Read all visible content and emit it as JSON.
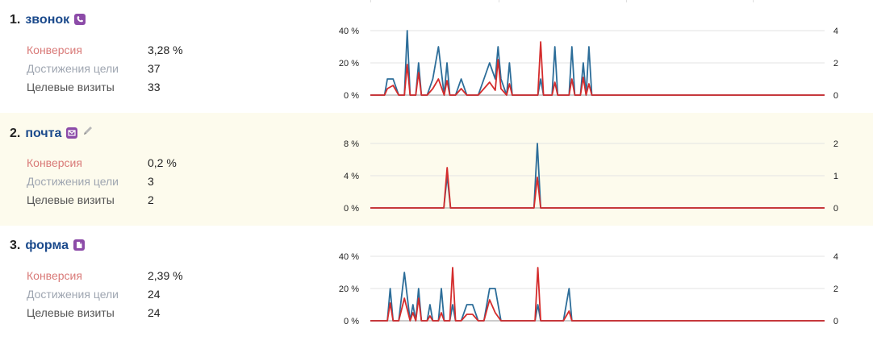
{
  "goals": [
    {
      "number": "1.",
      "name": "звонок",
      "icon": "phone-icon",
      "editable": false,
      "metrics": {
        "conversion_label": "Конверсия",
        "conversion": "3,28 %",
        "reaches_label": "Достижения цели",
        "reaches": "37",
        "visits_label": "Целевые визиты",
        "visits": "33"
      },
      "chart_data": {
        "type": "line",
        "left_axis_ticks": [
          "40 %",
          "20 %",
          "0 %"
        ],
        "right_axis_ticks": [
          "4",
          "2",
          "0"
        ],
        "left_ylim": [
          0,
          40
        ],
        "right_ylim": [
          0,
          4
        ],
        "series": [
          {
            "color": "#2c6d99",
            "points": [
              [
                0,
                0
              ],
              [
                2.5,
                0
              ],
              [
                3,
                1
              ],
              [
                4,
                1
              ],
              [
                5,
                0
              ],
              [
                6,
                0
              ],
              [
                6.5,
                4
              ],
              [
                7,
                0
              ],
              [
                8,
                0
              ],
              [
                8.5,
                2
              ],
              [
                9,
                0
              ],
              [
                10,
                0
              ],
              [
                11,
                1
              ],
              [
                12,
                3
              ],
              [
                13,
                0
              ],
              [
                13.5,
                2
              ],
              [
                14,
                0
              ],
              [
                15,
                0
              ],
              [
                16,
                1
              ],
              [
                17,
                0
              ],
              [
                18,
                0
              ],
              [
                19,
                0
              ],
              [
                20,
                1
              ],
              [
                21,
                2
              ],
              [
                22,
                1
              ],
              [
                22.5,
                3
              ],
              [
                23,
                1
              ],
              [
                24,
                0
              ],
              [
                24.5,
                2
              ],
              [
                25,
                0
              ],
              [
                26,
                0
              ],
              [
                27,
                0
              ],
              [
                28,
                0
              ],
              [
                29,
                0
              ],
              [
                29.5,
                0
              ],
              [
                30,
                1
              ],
              [
                30.5,
                0
              ],
              [
                31,
                0
              ],
              [
                32,
                0
              ],
              [
                32.5,
                3
              ],
              [
                33,
                0
              ],
              [
                34,
                0
              ],
              [
                35,
                0
              ],
              [
                35.5,
                3
              ],
              [
                36,
                0
              ],
              [
                37,
                0
              ],
              [
                37.5,
                2
              ],
              [
                38,
                0
              ],
              [
                38.5,
                3
              ],
              [
                39,
                0
              ],
              [
                80,
                0
              ]
            ]
          },
          {
            "color": "#d42c2c",
            "points": [
              [
                0,
                0
              ],
              [
                2.5,
                0
              ],
              [
                3,
                4
              ],
              [
                4,
                6
              ],
              [
                5,
                0
              ],
              [
                6,
                0
              ],
              [
                6.5,
                19
              ],
              [
                7,
                0
              ],
              [
                8,
                0
              ],
              [
                8.5,
                14
              ],
              [
                9,
                0
              ],
              [
                10,
                0
              ],
              [
                11,
                4
              ],
              [
                12,
                10
              ],
              [
                13,
                0
              ],
              [
                13.5,
                9
              ],
              [
                14,
                0
              ],
              [
                15,
                0
              ],
              [
                16,
                4
              ],
              [
                17,
                0
              ],
              [
                18,
                0
              ],
              [
                19,
                0
              ],
              [
                20,
                4
              ],
              [
                21,
                8
              ],
              [
                22,
                3
              ],
              [
                22.5,
                22
              ],
              [
                23,
                4
              ],
              [
                24,
                0
              ],
              [
                24.5,
                7
              ],
              [
                25,
                0
              ],
              [
                26,
                0
              ],
              [
                27,
                0
              ],
              [
                28,
                0
              ],
              [
                29,
                0
              ],
              [
                29.5,
                0
              ],
              [
                30,
                33
              ],
              [
                30.5,
                0
              ],
              [
                31,
                0
              ],
              [
                32,
                0
              ],
              [
                32.5,
                8
              ],
              [
                33,
                0
              ],
              [
                34,
                0
              ],
              [
                35,
                0
              ],
              [
                35.5,
                10
              ],
              [
                36,
                0
              ],
              [
                37,
                0
              ],
              [
                37.5,
                11
              ],
              [
                38,
                0
              ],
              [
                38.5,
                7
              ],
              [
                39,
                0
              ],
              [
                80,
                0
              ]
            ]
          }
        ]
      }
    },
    {
      "number": "2.",
      "name": "почта",
      "icon": "mail-icon",
      "editable": true,
      "metrics": {
        "conversion_label": "Конверсия",
        "conversion": "0,2 %",
        "reaches_label": "Достижения цели",
        "reaches": "3",
        "visits_label": "Целевые визиты",
        "visits": "2"
      },
      "chart_data": {
        "type": "line",
        "left_axis_ticks": [
          "8 %",
          "4 %",
          "0 %"
        ],
        "right_axis_ticks": [
          "2",
          "1",
          "0"
        ],
        "left_ylim": [
          0,
          8
        ],
        "right_ylim": [
          0,
          2
        ],
        "series": [
          {
            "color": "#2c6d99",
            "points": [
              [
                0,
                0
              ],
              [
                11,
                0
              ],
              [
                11.5,
                1
              ],
              [
                12,
                0
              ],
              [
                24.5,
                0
              ],
              [
                25,
                2
              ],
              [
                25.5,
                0
              ],
              [
                45,
                0
              ]
            ]
          },
          {
            "color": "#d42c2c",
            "points": [
              [
                0,
                0
              ],
              [
                11,
                0
              ],
              [
                11.5,
                5
              ],
              [
                12,
                0
              ],
              [
                24.5,
                0
              ],
              [
                25,
                3.8
              ],
              [
                25.5,
                0
              ],
              [
                45,
                0
              ]
            ]
          }
        ]
      }
    },
    {
      "number": "3.",
      "name": "форма",
      "icon": "document-icon",
      "editable": false,
      "metrics": {
        "conversion_label": "Конверсия",
        "conversion": "2,39 %",
        "reaches_label": "Достижения цели",
        "reaches": "24",
        "visits_label": "Целевые визиты",
        "visits": "24"
      },
      "chart_data": {
        "type": "line",
        "left_axis_ticks": [
          "40 %",
          "20 %",
          "0 %"
        ],
        "right_axis_ticks": [
          "4",
          "2",
          "0"
        ],
        "left_ylim": [
          0,
          40
        ],
        "right_ylim": [
          0,
          4
        ],
        "series": [
          {
            "color": "#2c6d99",
            "points": [
              [
                0,
                0
              ],
              [
                3,
                0
              ],
              [
                3.5,
                2
              ],
              [
                4,
                0
              ],
              [
                5,
                0
              ],
              [
                6,
                3
              ],
              [
                7,
                0
              ],
              [
                7.5,
                1
              ],
              [
                8,
                0
              ],
              [
                8.5,
                2
              ],
              [
                9,
                0
              ],
              [
                10,
                0
              ],
              [
                10.5,
                1
              ],
              [
                11,
                0
              ],
              [
                12,
                0
              ],
              [
                12.5,
                2
              ],
              [
                13,
                0
              ],
              [
                14,
                0
              ],
              [
                14.5,
                1
              ],
              [
                15,
                0
              ],
              [
                16,
                0
              ],
              [
                17,
                1
              ],
              [
                18,
                1
              ],
              [
                19,
                0
              ],
              [
                20,
                0
              ],
              [
                21,
                2
              ],
              [
                22,
                2
              ],
              [
                23,
                0
              ],
              [
                24,
                0
              ],
              [
                29,
                0
              ],
              [
                29.5,
                1
              ],
              [
                30,
                0
              ],
              [
                34,
                0
              ],
              [
                35,
                2
              ],
              [
                35.5,
                0
              ],
              [
                40,
                0
              ]
            ]
          },
          {
            "color": "#d42c2c",
            "points": [
              [
                0,
                0
              ],
              [
                3,
                0
              ],
              [
                3.5,
                11
              ],
              [
                4,
                0
              ],
              [
                5,
                0
              ],
              [
                6,
                14
              ],
              [
                7,
                0
              ],
              [
                7.5,
                5
              ],
              [
                8,
                0
              ],
              [
                8.5,
                14
              ],
              [
                9,
                0
              ],
              [
                10,
                0
              ],
              [
                10.5,
                3
              ],
              [
                11,
                0
              ],
              [
                12,
                0
              ],
              [
                12.5,
                5
              ],
              [
                13,
                0
              ],
              [
                14,
                0
              ],
              [
                14.5,
                33
              ],
              [
                15,
                0
              ],
              [
                16,
                0
              ],
              [
                17,
                4
              ],
              [
                18,
                4
              ],
              [
                19,
                0
              ],
              [
                20,
                0
              ],
              [
                21,
                13
              ],
              [
                22,
                5
              ],
              [
                23,
                0
              ],
              [
                24,
                0
              ],
              [
                29,
                0
              ],
              [
                29.5,
                33
              ],
              [
                30,
                0
              ],
              [
                34,
                0
              ],
              [
                35,
                6
              ],
              [
                35.5,
                0
              ],
              [
                40,
                0
              ]
            ]
          }
        ]
      }
    }
  ],
  "colors": {
    "accent_title": "#1b4a8c",
    "icon_purple": "#8c4ba8",
    "line_blue": "#2c6d99",
    "line_red": "#d42c2c",
    "alt_row_bg": "#fdfbed"
  }
}
